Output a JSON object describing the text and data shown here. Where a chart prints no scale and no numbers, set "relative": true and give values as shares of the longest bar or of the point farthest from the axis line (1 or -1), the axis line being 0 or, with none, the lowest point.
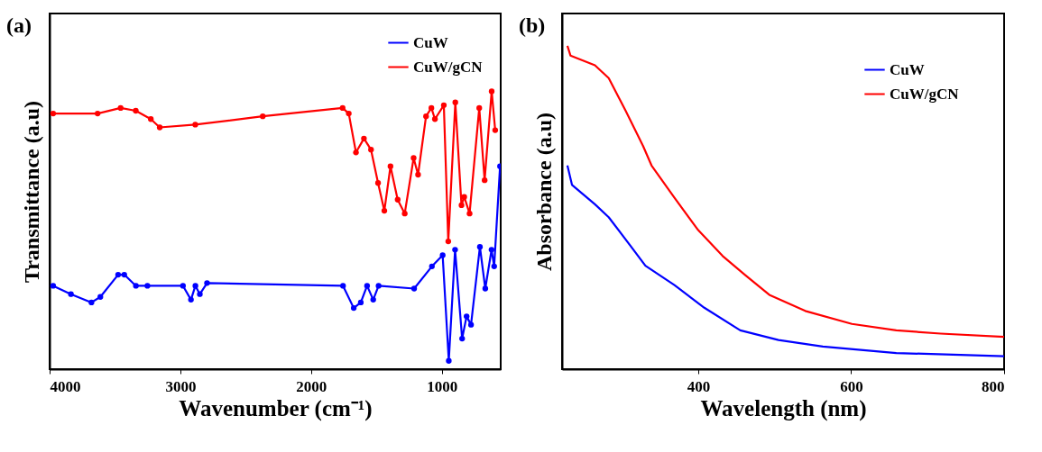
{
  "chart_data": [
    {
      "type": "line",
      "title": "(a)",
      "xlabel": "Wavenumber (cm⁻¹)",
      "ylabel": "Transmittance (a.u)",
      "relative": true,
      "xlim": [
        4000,
        550
      ],
      "xticks": [
        4000,
        3000,
        2000,
        1000
      ],
      "legend": "top right",
      "marker": "circle",
      "tick_labels": "x",
      "series": [
        {
          "name": "CuW",
          "color": "#0000ff",
          "x": [
            3973,
            3837,
            3680,
            3612,
            3476,
            3429,
            3340,
            3252,
            2980,
            2919,
            2885,
            2851,
            2796,
            1756,
            1674,
            1620,
            1572,
            1525,
            1484,
            1212,
            1076,
            994,
            947,
            899,
            845,
            811,
            777,
            709,
            668,
            620,
            600,
            555
          ],
          "values": [
            0.3,
            0.27,
            0.24,
            0.26,
            0.34,
            0.34,
            0.3,
            0.3,
            0.3,
            0.25,
            0.3,
            0.27,
            0.31,
            0.3,
            0.22,
            0.24,
            0.3,
            0.25,
            0.3,
            0.29,
            0.37,
            0.41,
            0.03,
            0.43,
            0.11,
            0.19,
            0.16,
            0.44,
            0.29,
            0.43,
            0.37,
            0.73
          ]
        },
        {
          "name": "CuW/gCN",
          "color": "#ff0000",
          "x": [
            3973,
            3633,
            3457,
            3341,
            3226,
            3158,
            2886,
            2370,
            1759,
            1712,
            1657,
            1596,
            1542,
            1488,
            1440,
            1393,
            1338,
            1284,
            1216,
            1182,
            1121,
            1080,
            1053,
            985,
            951,
            897,
            850,
            829,
            788,
            714,
            673,
            619,
            592
          ],
          "values": [
            0.92,
            0.92,
            0.94,
            0.93,
            0.9,
            0.87,
            0.88,
            0.91,
            0.94,
            0.92,
            0.78,
            0.83,
            0.79,
            0.67,
            0.57,
            0.73,
            0.61,
            0.56,
            0.76,
            0.7,
            0.91,
            0.94,
            0.9,
            0.95,
            0.46,
            0.96,
            0.59,
            0.62,
            0.56,
            0.94,
            0.68,
            1.0,
            0.86
          ]
        }
      ]
    },
    {
      "type": "line",
      "title": "(b)",
      "xlabel": "Wavelength (nm)",
      "ylabel": "Absorbance (a.u)",
      "relative": true,
      "xlim": [
        222,
        800
      ],
      "xticks": [
        400,
        600,
        800
      ],
      "legend": "top right",
      "tick_labels": "x",
      "series": [
        {
          "name": "CuW",
          "color": "#0000ff",
          "x": [
            229,
            235,
            265,
            283,
            312,
            331,
            369,
            408,
            455,
            505,
            563,
            659,
            800
          ],
          "values": [
            0.63,
            0.57,
            0.51,
            0.47,
            0.38,
            0.32,
            0.26,
            0.19,
            0.12,
            0.09,
            0.07,
            0.05,
            0.04
          ]
        },
        {
          "name": "CuW/gCN",
          "color": "#ff0000",
          "x": [
            229,
            233,
            265,
            283,
            305,
            328,
            339,
            369,
            400,
            432,
            462,
            493,
            540,
            601,
            659,
            717,
            800
          ],
          "values": [
            1.0,
            0.97,
            0.94,
            0.9,
            0.8,
            0.69,
            0.63,
            0.53,
            0.43,
            0.35,
            0.29,
            0.23,
            0.18,
            0.14,
            0.12,
            0.11,
            0.1
          ]
        }
      ]
    }
  ]
}
